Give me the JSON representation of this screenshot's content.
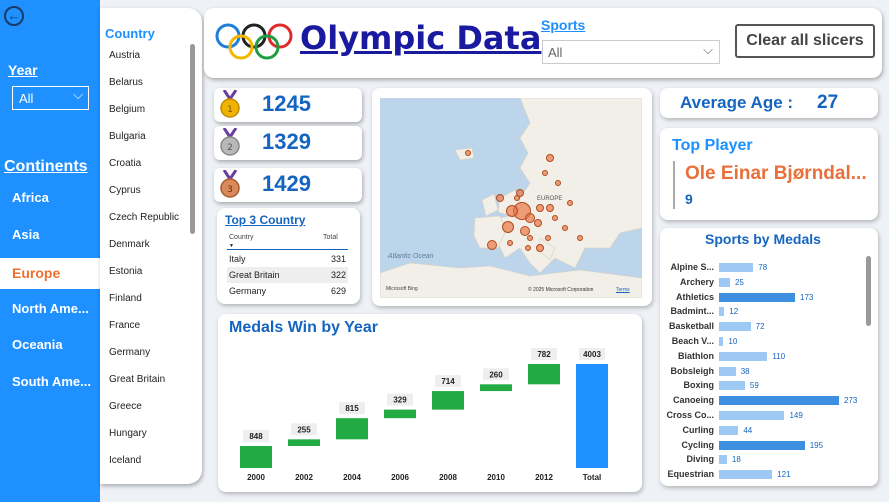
{
  "sidebar": {
    "year_label": "Year",
    "year_value": "All",
    "continents_label": "Continents",
    "continents": [
      "Africa",
      "Asia",
      "Europe",
      "North Ame...",
      "Oceania",
      "South Ame..."
    ],
    "selected_continent": "Europe"
  },
  "country_filter": {
    "title": "Country",
    "items": [
      "Austria",
      "Belarus",
      "Belgium",
      "Bulgaria",
      "Croatia",
      "Cyprus",
      "Czech Republic",
      "Denmark",
      "Estonia",
      "Finland",
      "France",
      "Germany",
      "Great Britain",
      "Greece",
      "Hungary",
      "Iceland"
    ]
  },
  "header": {
    "title": "Olympic Data",
    "sports_label": "Sports",
    "sports_value": "All",
    "clear_button": "Clear all slicers"
  },
  "medals": {
    "gold": "1245",
    "silver": "1329",
    "bronze": "1429"
  },
  "top3": {
    "title": "Top 3 Country",
    "col_country": "Country",
    "col_total": "Total",
    "rows": [
      {
        "country": "Italy",
        "total": "331"
      },
      {
        "country": "Great Britain",
        "total": "322"
      },
      {
        "country": "Germany",
        "total": "629"
      }
    ]
  },
  "map": {
    "ocean_label": "Atlantic Ocean",
    "region_label": "EUROPE",
    "brand": "Microsoft Bing",
    "copyright": "© 2025 Microsoft Corporation",
    "terms": "Terms"
  },
  "average_age": {
    "label": "Average Age :",
    "value": "27"
  },
  "top_player": {
    "label": "Top Player",
    "name": "Ole Einar Bjørndal...",
    "count": "9"
  },
  "colors": {
    "accent": "#1e90ff",
    "title": "#1565c0",
    "up_bar": "#22aa44",
    "total_bar": "#1e90ff",
    "player": "#e8703a"
  },
  "chart_data": [
    {
      "type": "bar",
      "subtype": "waterfall",
      "title": "Medals Win by Year",
      "categories": [
        "2000",
        "2002",
        "2004",
        "2006",
        "2008",
        "2010",
        "2012",
        "Total"
      ],
      "values": [
        848,
        255,
        815,
        329,
        714,
        260,
        782,
        4003
      ],
      "total": 4003
    },
    {
      "type": "bar",
      "orientation": "horizontal",
      "title": "Sports by Medals",
      "categories": [
        "Alpine S...",
        "Archery",
        "Athletics",
        "Badmint...",
        "Basketball",
        "Beach V...",
        "Biathlon",
        "Bobsleigh",
        "Boxing",
        "Canoeing",
        "Cross Co...",
        "Curling",
        "Cycling",
        "Diving",
        "Equestrian"
      ],
      "values": [
        78,
        25,
        173,
        12,
        72,
        10,
        110,
        38,
        59,
        273,
        149,
        44,
        195,
        18,
        121
      ]
    }
  ]
}
